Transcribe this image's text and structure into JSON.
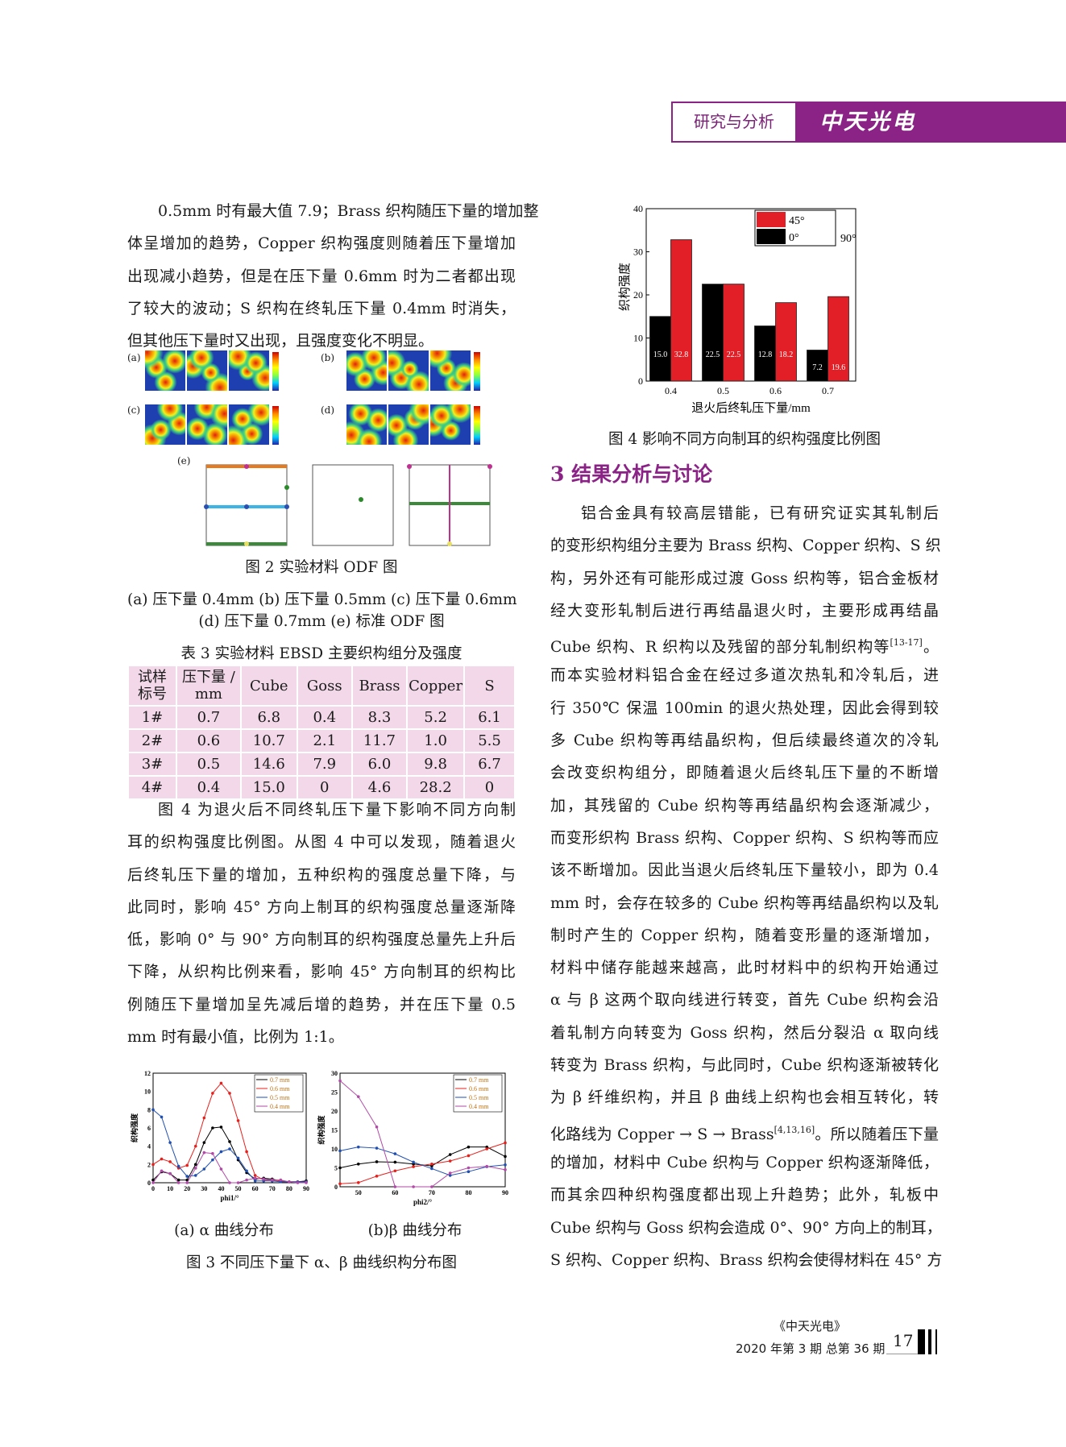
{
  "header": {
    "section": "研究与分析",
    "journal_logo": "中天光电",
    "accent": "#8b2387"
  },
  "left_para1": [
    "0.5mm 时有最大值 7.9；Brass 织构随压下量的增加整",
    "体呈增加的趋势，Copper 织构强度则随着压下量增加",
    "出现减小趋势，但是在压下量 0.6mm 时为二者都出现",
    "了较大的波动；S 织构在终轧压下量 0.4mm 时消失，",
    "但其他压下量时又出现，且强度变化不明显。"
  ],
  "fig2": {
    "panel_labels": [
      "(a)",
      "(b)",
      "(c)",
      "(d)",
      "(e)"
    ],
    "caption": "图 2 实验材料 ODF 图",
    "sub1": "(a) 压下量 0.4mm (b) 压下量 0.5mm (c) 压下量 0.6mm",
    "sub2": "(d) 压下量 0.7mm (e) 标准 ODF 图"
  },
  "table3": {
    "title": "表 3 实验材料 EBSD 主要织构组分及强度",
    "headers": [
      "试样\n标号",
      "压下量 /\nmm",
      "Cube",
      "Goss",
      "Brass",
      "Copper",
      "S"
    ],
    "rows": [
      [
        "1#",
        "0.7",
        "6.8",
        "0.4",
        "8.3",
        "5.2",
        "6.1"
      ],
      [
        "2#",
        "0.6",
        "10.7",
        "2.1",
        "11.7",
        "1.0",
        "5.5"
      ],
      [
        "3#",
        "0.5",
        "14.6",
        "7.9",
        "6.0",
        "9.8",
        "6.7"
      ],
      [
        "4#",
        "0.4",
        "15.0",
        "0",
        "4.6",
        "28.2",
        "0"
      ]
    ]
  },
  "left_para2": [
    "图 4 为退火后不同终轧压下量下影响不同方向制",
    "耳的织构强度比例图。从图 4 中可以发现，随着退火",
    "后终轧压下量的增加，五种织构的强度总量下降，与",
    "此同时，影响 45° 方向上制耳的织构强度总量逐渐降",
    "低，影响 0° 与 90° 方向制耳的织构强度总量先上升后",
    "下降，从织构比例来看，影响 45° 方向制耳的织构比",
    "例随压下量增加呈先减后增的趋势，并在压下量 0.5",
    "mm 时有最小值，比例为 1:1。"
  ],
  "fig3": {
    "sub_a": "(a) α 曲线分布",
    "sub_b": "(b)β 曲线分布",
    "caption": "图 3 不同压下量下 α、β 曲线织构分布图"
  },
  "fig4": {
    "caption": "图 4 影响不同方向制耳的织构强度比例图"
  },
  "section3": {
    "title": "3  结果分析与讨论"
  },
  "right_para": [
    {
      "t": "铝合金具有较高层错能，已有研究证实其轧制后"
    },
    {
      "t": "的变形织构组分主要为 Brass 织构、Copper 织构、S 织"
    },
    {
      "t": "构，另外还有可能形成过渡 Goss 织构等，铝合金板材"
    },
    {
      "t": "经大变形轧制后进行再结晶退火时，主要形成再结晶"
    },
    {
      "t": "Cube 织构、R 织构以及残留的部分轧制织构等",
      "sup": "[13-17]",
      "after": "。"
    },
    {
      "t": "而本实验材料铝合金在经过多道次热轧和冷轧后，进"
    },
    {
      "t": "行 350℃ 保温 100min 的退火热处理，因此会得到较"
    },
    {
      "t": "多 Cube 织构等再结晶织构，但后续最终道次的冷轧"
    },
    {
      "t": "会改变织构组分，即随着退火后终轧压下量的不断增"
    },
    {
      "t": "加，其残留的 Cube 织构等再结晶织构会逐渐减少，"
    },
    {
      "t": "而变形织构 Brass 织构、Copper 织构、S 织构等而应"
    },
    {
      "t": "该不断增加。因此当退火后终轧压下量较小，即为 0.4"
    },
    {
      "t": "mm 时，会存在较多的 Cube 织构等再结晶织构以及轧"
    },
    {
      "t": "制时产生的 Copper 织构，随着变形量的逐渐增加，"
    },
    {
      "t": "材料中储存能越来越高，此时材料中的织构开始通过"
    },
    {
      "t": "α 与 β 这两个取向线进行转变，首先 Cube 织构会沿"
    },
    {
      "t": "着轧制方向转变为 Goss 织构，然后分裂沿 α 取向线"
    },
    {
      "t": "转变为 Brass 织构，与此同时，Cube 织构逐渐被转化"
    },
    {
      "t": "为 β 纤维织构，并且 β 曲线上织构也会相互转化，转"
    },
    {
      "t": "化路线为 Copper → S → Brass",
      "sup": "[4,13,16]",
      "after": "。所以随着压下量"
    },
    {
      "t": "的增加，材料中 Cube 织构与 Copper 织构逐渐降低，"
    },
    {
      "t": "而其余四种织构强度都出现上升趋势；此外，轧板中"
    },
    {
      "t": "Cube 织构与 Goss 织构会造成 0°、90° 方向上的制耳，"
    },
    {
      "t": "S 织构、Copper 织构、Brass 织构会使得材料在 45° 方"
    }
  ],
  "footer": {
    "journal": "《中天光电》",
    "issue": "2020 年第 3 期 总第 36 期",
    "page": "17"
  },
  "chart_data": [
    {
      "type": "bar",
      "xlabel": "退火后终轧压下量/mm",
      "ylabel": "织构强度",
      "categories": [
        "0.4",
        "0.5",
        "0.6",
        "0.7"
      ],
      "ylim": [
        0,
        40
      ],
      "yticks": [
        "0",
        "10",
        "20",
        "30",
        "40"
      ],
      "series": [
        {
          "name": "0°",
          "values": [
            15.0,
            22.5,
            12.8,
            7.2
          ],
          "labels": [
            "15.0",
            "22.5",
            "12.8",
            "7.2"
          ],
          "color": "#000000"
        },
        {
          "name": "45°",
          "values": [
            32.8,
            22.5,
            18.2,
            19.6
          ],
          "labels": [
            "32.8",
            "22.5",
            "18.2",
            "19.6"
          ],
          "color": "#e21f26"
        }
      ],
      "extra_legend": "90°",
      "legend": "top-right"
    },
    {
      "type": "line",
      "xlabel": "phi1/°",
      "ylabel": "织构强度",
      "xlim": [
        0,
        90
      ],
      "ylim": [
        0,
        12
      ],
      "xticks": [
        "0",
        "10",
        "20",
        "30",
        "40",
        "50",
        "60",
        "70",
        "80",
        "90"
      ],
      "yticks": [
        "0",
        "2",
        "4",
        "6",
        "8",
        "10",
        "12"
      ],
      "x": [
        0,
        5,
        10,
        15,
        20,
        25,
        30,
        35,
        40,
        45,
        50,
        55,
        60,
        65,
        70,
        75,
        80,
        85,
        90
      ],
      "series": [
        {
          "name": "0.7 mm",
          "color": "#000000",
          "values": [
            0.3,
            1.2,
            1.0,
            0.3,
            0.3,
            2.0,
            4.4,
            6.0,
            6.1,
            4.5,
            2.5,
            1.1,
            0.4,
            0.5,
            0.4,
            0.2,
            0.1,
            0.1,
            0.2
          ]
        },
        {
          "name": "0.6 mm",
          "color": "#e8201c",
          "values": [
            2.0,
            2.6,
            2.3,
            1.6,
            1.9,
            4.0,
            7.1,
            9.8,
            10.9,
            9.8,
            6.8,
            3.4,
            0.8,
            0.3,
            0.3,
            0.2,
            0.1,
            0.1,
            0.1
          ]
        },
        {
          "name": "0.5 mm",
          "color": "#1f4fb0",
          "values": [
            8.0,
            7.2,
            4.4,
            1.8,
            0.7,
            0.8,
            1.5,
            2.5,
            3.4,
            3.7,
            2.7,
            1.3,
            0.2,
            0.2,
            0.2,
            0.1,
            0.1,
            0.1,
            0.1
          ]
        },
        {
          "name": "0.4 mm",
          "color": "#b24aa8",
          "values": [
            0,
            1.3,
            1.0,
            0,
            0,
            1.6,
            3.3,
            3.2,
            1.5,
            0,
            0,
            0.3,
            0.5,
            0.4,
            0.3,
            0.3,
            0.1,
            0,
            0
          ]
        }
      ],
      "legend": "top-right"
    },
    {
      "type": "line",
      "xlabel": "phi2/°",
      "ylabel": "织构强度",
      "xlim": [
        45,
        90
      ],
      "ylim": [
        0,
        30
      ],
      "xticks": [
        "50",
        "60",
        "70",
        "80",
        "90"
      ],
      "yticks": [
        "0",
        "5",
        "10",
        "15",
        "20",
        "25",
        "30"
      ],
      "x": [
        45,
        50,
        55,
        60,
        65,
        70,
        75,
        80,
        85,
        90
      ],
      "series": [
        {
          "name": "0.7 mm",
          "color": "#000000",
          "values": [
            5,
            6,
            6.6,
            6.5,
            6,
            5.5,
            8.5,
            10.5,
            10.5,
            8
          ]
        },
        {
          "name": "0.6 mm",
          "color": "#e8201c",
          "values": [
            0.8,
            1.1,
            2.8,
            4.2,
            5.3,
            6,
            6.8,
            8.2,
            10,
            11.6
          ]
        },
        {
          "name": "0.5 mm",
          "color": "#1f4fb0",
          "values": [
            9.5,
            10.5,
            10.2,
            8.7,
            6.5,
            4.8,
            3,
            4,
            5.3,
            5.8
          ]
        },
        {
          "name": "0.4 mm",
          "color": "#b24aa8",
          "values": [
            28,
            23.8,
            15.8,
            0,
            0,
            0,
            3.6,
            5,
            5.4,
            4.5
          ]
        }
      ],
      "legend": "top-right"
    }
  ]
}
